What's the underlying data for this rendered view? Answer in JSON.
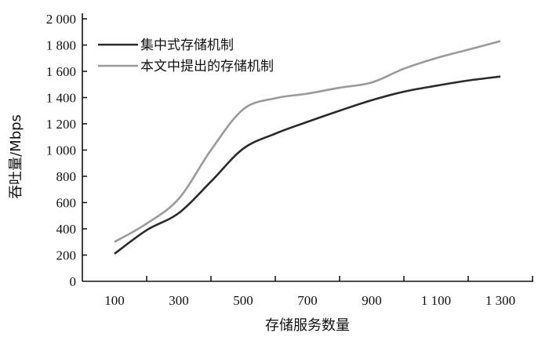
{
  "chart_data": {
    "type": "line",
    "title": "",
    "xlabel": "存储服务数量",
    "ylabel": "吞吐量/Mbps",
    "xlim": [
      0,
      1400
    ],
    "ylim": [
      0,
      2000
    ],
    "x_ticks": [
      100,
      300,
      500,
      700,
      900,
      1100,
      1300
    ],
    "x_tick_labels": [
      "100",
      "300",
      "500",
      "700",
      "900",
      "1 100",
      "1 300"
    ],
    "x_minor_ticks": [
      200,
      400,
      600,
      800,
      1000,
      1200,
      1400
    ],
    "y_ticks": [
      0,
      200,
      400,
      600,
      800,
      1000,
      1200,
      1400,
      1600,
      1800,
      2000
    ],
    "y_tick_labels": [
      "0",
      "200",
      "400",
      "600",
      "800",
      "1 000",
      "1 200",
      "1 400",
      "1 600",
      "1 800",
      "2 000"
    ],
    "grid": false,
    "legend_position": "top-left",
    "x": [
      100,
      200,
      300,
      400,
      500,
      600,
      700,
      800,
      900,
      1000,
      1100,
      1200,
      1300
    ],
    "series": [
      {
        "name": "集中式存储机制",
        "color": "#2a2a2a",
        "values": [
          210,
          390,
          520,
          760,
          1010,
          1125,
          1215,
          1300,
          1380,
          1445,
          1490,
          1530,
          1560
        ]
      },
      {
        "name": "本文中提出的存储机制",
        "color": "#9a9a9a",
        "values": [
          300,
          440,
          630,
          1000,
          1310,
          1395,
          1430,
          1475,
          1515,
          1620,
          1700,
          1765,
          1830
        ]
      }
    ]
  }
}
